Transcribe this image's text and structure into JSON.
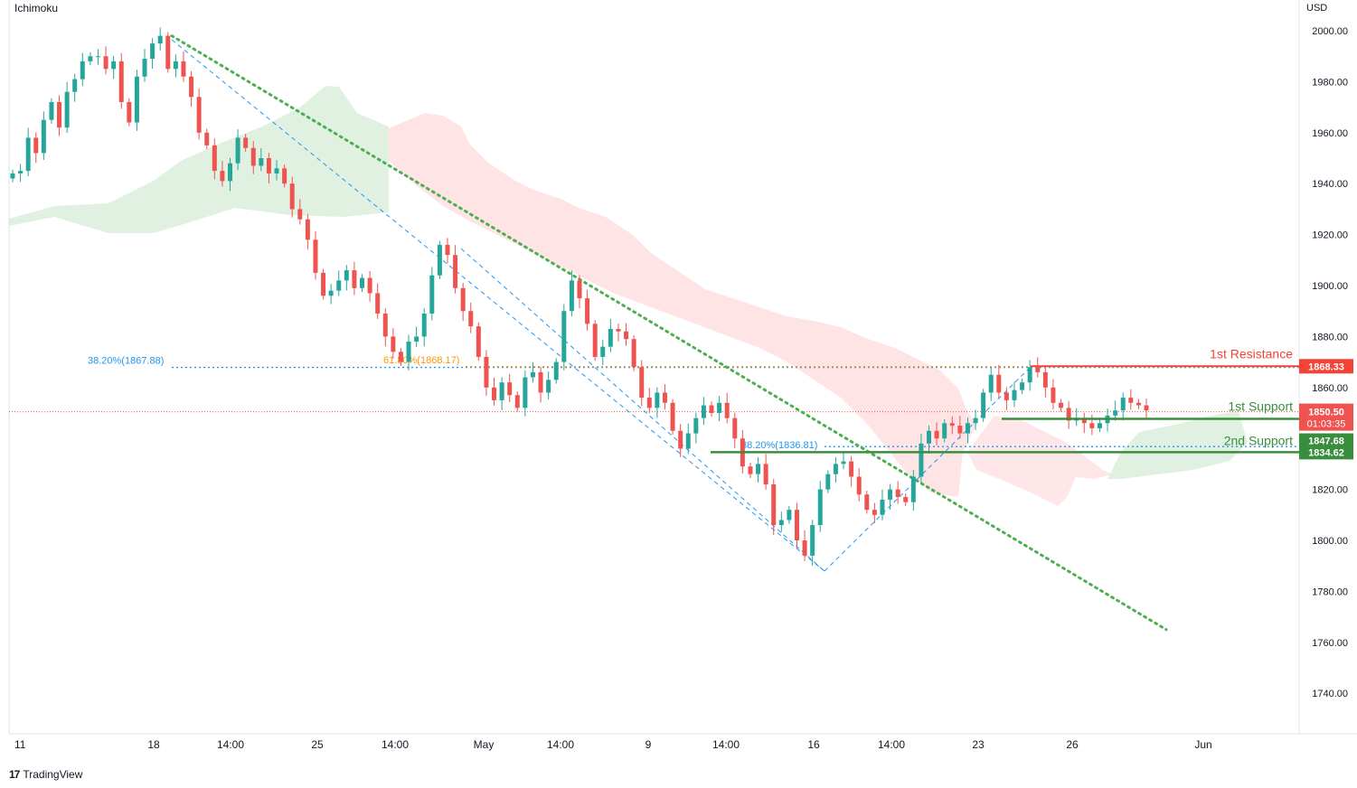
{
  "header": {
    "indicator": "Ichimoku",
    "currency": "USD"
  },
  "branding": {
    "logo_glyph": "17",
    "name": "TradingView"
  },
  "colors": {
    "bull": "#26a69a",
    "bear": "#ef5350",
    "trendline": "#4caf50",
    "channel": "#2196f3",
    "cloud_bull": "#c8e6c9",
    "cloud_bear": "#ffcdd2",
    "resistance": "#f44336",
    "support": "#388e3c",
    "fib_blue": "#2196f3",
    "fib_orange": "#ff9800",
    "price_line": "#ef5350",
    "price_tag": "#ef5350"
  },
  "chart_data": {
    "type": "candlestick",
    "title": "",
    "ylabel": "USD",
    "ylim": [
      1730,
      2010
    ],
    "y_ticks": [
      "2000.00",
      "1980.00",
      "1960.00",
      "1940.00",
      "1920.00",
      "1900.00",
      "1880.00",
      "1860.00",
      "1840.00",
      "1820.00",
      "1800.00",
      "1780.00",
      "1760.00",
      "1740.00"
    ],
    "x_ticks": [
      "11",
      "18",
      "14:00",
      "25",
      "14:00",
      "May",
      "14:00",
      "9",
      "14:00",
      "16",
      "14:00",
      "23",
      "26",
      "Jun"
    ],
    "last_price": "1850.50",
    "countdown": "01:03:35",
    "candle_close_path": [
      1944,
      1945,
      1958,
      1952,
      1965,
      1972,
      1962,
      1976,
      1981,
      1988,
      1990,
      1990,
      1985,
      1988,
      1972,
      1964,
      1982,
      1989,
      1995,
      1998,
      1985,
      1988,
      1982,
      1974,
      1960,
      1955,
      1945,
      1941,
      1948,
      1958,
      1954,
      1947,
      1950,
      1944,
      1946,
      1940,
      1930,
      1926,
      1918,
      1905,
      1896,
      1898,
      1902,
      1906,
      1899,
      1903,
      1897,
      1889,
      1880,
      1874,
      1870,
      1878,
      1880,
      1889,
      1904,
      1916,
      1912,
      1899,
      1890,
      1884,
      1872,
      1860,
      1855,
      1862,
      1857,
      1852,
      1864,
      1866,
      1858,
      1863,
      1870,
      1890,
      1902,
      1895,
      1885,
      1872,
      1876,
      1883,
      1882,
      1879,
      1868,
      1856,
      1852,
      1858,
      1854,
      1843,
      1836,
      1842,
      1848,
      1853,
      1850,
      1854,
      1848,
      1840,
      1829,
      1826,
      1830,
      1822,
      1806,
      1808,
      1812,
      1800,
      1794,
      1806,
      1820,
      1826,
      1830,
      1831,
      1825,
      1818,
      1812,
      1810,
      1816,
      1820,
      1817,
      1815,
      1825,
      1838,
      1843,
      1840,
      1846,
      1845,
      1842,
      1846,
      1848,
      1858,
      1865,
      1858,
      1855,
      1859,
      1862,
      1868,
      1866,
      1860,
      1854,
      1852,
      1847,
      1848,
      1846,
      1844,
      1846,
      1849,
      1851,
      1856,
      1854,
      1853,
      1851
    ],
    "ichimoku_cloud": [
      {
        "kind": "bull",
        "x_from": "11",
        "x_to": "30 Apr",
        "label": ""
      },
      {
        "kind": "bear",
        "x_from": "30 Apr",
        "x_to": "23",
        "label": ""
      },
      {
        "kind": "bull",
        "x_from": "23",
        "x_to": "Jun",
        "label": ""
      }
    ],
    "fib_levels": [
      {
        "label": "38.20%(1867.88)",
        "value": 1867.88,
        "color": "blue"
      },
      {
        "label": "61.80%(1868.17)",
        "value": 1868.17,
        "color": "orange"
      },
      {
        "label": "38.20%(1836.81)",
        "value": 1836.81,
        "color": "blue"
      }
    ],
    "levels": [
      {
        "label": "1st Resistance",
        "value": 1868.33,
        "tag": "1868.33",
        "kind": "resistance"
      },
      {
        "label": "1st Support",
        "value": 1847.68,
        "tag": "1847.68",
        "kind": "support"
      },
      {
        "label": "2nd Support",
        "value": 1834.62,
        "tag": "1834.62",
        "kind": "support"
      }
    ],
    "trendline": {
      "start": 1998,
      "end": 1765
    },
    "grid": false,
    "legend": "none"
  }
}
